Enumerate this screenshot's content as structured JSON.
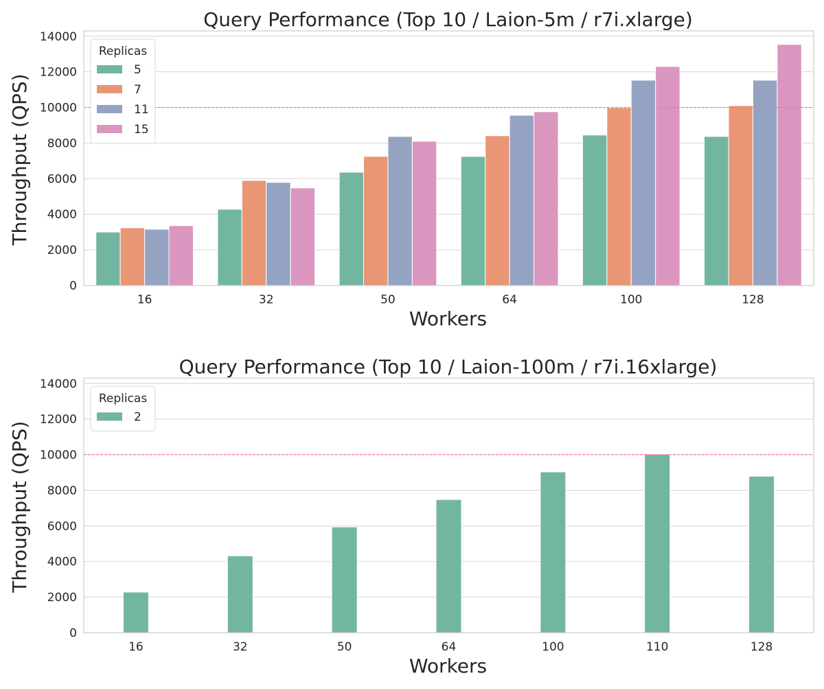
{
  "chart_data": [
    {
      "type": "bar",
      "title": "Query Performance (Top 10 / Laion-5m / r7i.xlarge)",
      "xlabel": "Workers",
      "ylabel": "Throughput (QPS)",
      "ylim": [
        0,
        14300
      ],
      "yticks": [
        0,
        2000,
        4000,
        6000,
        8000,
        10000,
        12000,
        14000
      ],
      "grid": true,
      "legend": {
        "title": "Replicas",
        "placement": "top-left"
      },
      "reference_line": {
        "y": 10000,
        "style": "dashed",
        "color": "#ff6b9a"
      },
      "categories": [
        "16",
        "32",
        "50",
        "64",
        "100",
        "128"
      ],
      "series": [
        {
          "name": "5",
          "color": "#72b6a1",
          "values": [
            3000,
            4280,
            6360,
            7250,
            8450,
            8370
          ]
        },
        {
          "name": "7",
          "color": "#e99675",
          "values": [
            3240,
            5900,
            7250,
            8410,
            9990,
            10100
          ]
        },
        {
          "name": "11",
          "color": "#95a3c3",
          "values": [
            3160,
            5790,
            8370,
            9560,
            11530,
            11530
          ]
        },
        {
          "name": "15",
          "color": "#db96c0",
          "values": [
            3360,
            5480,
            8100,
            9760,
            12300,
            13540
          ]
        }
      ]
    },
    {
      "type": "bar",
      "title": "Query Performance (Top 10 / Laion-100m / r7i.16xlarge)",
      "xlabel": "Workers",
      "ylabel": "Throughput (QPS)",
      "ylim": [
        0,
        14300
      ],
      "yticks": [
        0,
        2000,
        4000,
        6000,
        8000,
        10000,
        12000,
        14000
      ],
      "grid": true,
      "legend": {
        "title": "Replicas",
        "placement": "top-left"
      },
      "reference_line": {
        "y": 10000,
        "style": "dashed",
        "color": "#ff6b9a"
      },
      "categories": [
        "16",
        "32",
        "50",
        "64",
        "100",
        "110",
        "128"
      ],
      "series": [
        {
          "name": "2",
          "color": "#72b6a1",
          "values": [
            2280,
            4320,
            5940,
            7480,
            9030,
            10030,
            8790
          ]
        }
      ]
    }
  ]
}
